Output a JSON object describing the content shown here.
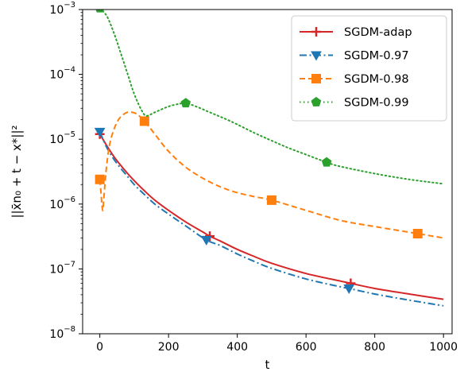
{
  "chart_data": {
    "type": "line",
    "xlabel": "t",
    "ylabel": "||x̄n₀ + t − x*||²",
    "xlim": [
      -50,
      1025
    ],
    "ylim": [
      1e-08,
      0.001
    ],
    "yscale": "log",
    "xticks": [
      0,
      200,
      400,
      600,
      800,
      1000
    ],
    "xtick_labels": [
      "0",
      "200",
      "400",
      "600",
      "800",
      "1000"
    ],
    "yticks": [
      1e-08,
      1e-07,
      1e-06,
      1e-05,
      0.0001,
      0.001
    ],
    "ytick_labels": [
      {
        "base": "10",
        "exp": "−8"
      },
      {
        "base": "10",
        "exp": "−7"
      },
      {
        "base": "10",
        "exp": "−6"
      },
      {
        "base": "10",
        "exp": "−5"
      },
      {
        "base": "10",
        "exp": "−4"
      },
      {
        "base": "10",
        "exp": "−3"
      }
    ],
    "grid": false,
    "legend_position": "top-right",
    "series": [
      {
        "name": "SGDM-adap",
        "color": "#d62728",
        "linestyle": "solid",
        "marker": "plus",
        "x": [
          0,
          20,
          40,
          60,
          80,
          100,
          130,
          160,
          200,
          250,
          300,
          320,
          350,
          400,
          450,
          500,
          600,
          700,
          730,
          800,
          900,
          1000
        ],
        "y": [
          1.2e-05,
          8e-06,
          5.5e-06,
          4e-06,
          3e-06,
          2.3e-06,
          1.6e-06,
          1.15e-06,
          8e-07,
          5.3e-07,
          3.7e-07,
          3.2e-07,
          2.7e-07,
          2e-07,
          1.55e-07,
          1.22e-07,
          8.5e-08,
          6.5e-08,
          6e-08,
          5e-08,
          4.1e-08,
          3.4e-08
        ],
        "markers_at": [
          0,
          320,
          730
        ]
      },
      {
        "name": "SGDM-0.97",
        "color": "#1f77b4",
        "linestyle": "dashdot",
        "marker": "triangle-down",
        "x": [
          0,
          20,
          40,
          60,
          80,
          100,
          130,
          160,
          200,
          250,
          310,
          350,
          400,
          450,
          500,
          600,
          700,
          725,
          800,
          900,
          1000
        ],
        "y": [
          1.3e-05,
          7.5e-06,
          5e-06,
          3.6e-06,
          2.7e-06,
          2e-06,
          1.4e-06,
          1e-06,
          7e-07,
          4.6e-07,
          2.8e-07,
          2.3e-07,
          1.7e-07,
          1.3e-07,
          1.02e-07,
          7e-08,
          5.3e-08,
          5e-08,
          4.1e-08,
          3.3e-08,
          2.7e-08
        ],
        "markers_at": [
          0,
          310,
          725
        ]
      },
      {
        "name": "SGDM-0.98",
        "color": "#ff7f0e",
        "linestyle": "dashed",
        "marker": "square",
        "x": [
          0,
          3,
          6,
          9,
          12,
          20,
          30,
          45,
          60,
          80,
          95,
          110,
          130,
          160,
          200,
          250,
          300,
          350,
          400,
          450,
          500,
          600,
          700,
          800,
          925,
          1000
        ],
        "y": [
          2.4e-06,
          1.6e-06,
          1e-06,
          8e-07,
          1.3e-06,
          4e-06,
          9e-06,
          1.6e-05,
          2.2e-05,
          2.6e-05,
          2.6e-05,
          2.4e-05,
          1.9e-05,
          1.2e-05,
          6.5e-06,
          3.7e-06,
          2.5e-06,
          1.85e-06,
          1.5e-06,
          1.3e-06,
          1.15e-06,
          8e-07,
          5.6e-07,
          4.5e-07,
          3.5e-07,
          3e-07
        ],
        "markers_at": [
          0,
          130,
          500,
          925
        ]
      },
      {
        "name": "SGDM-0.99",
        "color": "#2ca02c",
        "linestyle": "dotted",
        "marker": "pentagon",
        "x": [
          0,
          20,
          40,
          60,
          80,
          100,
          120,
          135,
          160,
          200,
          230,
          250,
          280,
          320,
          380,
          450,
          500,
          550,
          600,
          660,
          700,
          800,
          900,
          1000
        ],
        "y": [
          0.00105,
          0.0008,
          0.00045,
          0.00022,
          0.000105,
          5e-05,
          2.9e-05,
          2.3e-05,
          2.6e-05,
          3.2e-05,
          3.5e-05,
          3.6e-05,
          3.2e-05,
          2.6e-05,
          1.9e-05,
          1.25e-05,
          9.5e-06,
          7.3e-06,
          5.8e-06,
          4.4e-06,
          3.8e-06,
          2.95e-06,
          2.4e-06,
          2.05e-06
        ],
        "markers_at": [
          0,
          250,
          660
        ]
      }
    ]
  }
}
